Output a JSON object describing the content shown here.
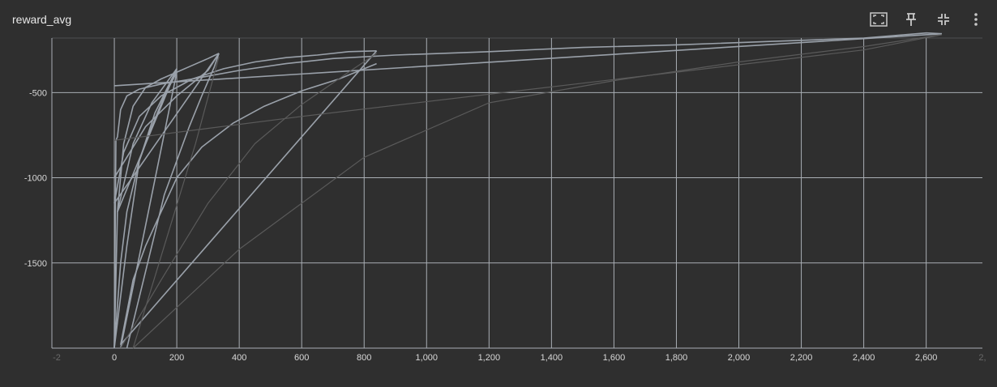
{
  "card": {
    "title": "reward_avg",
    "toolbar": [
      {
        "name": "fit-domain-icon",
        "label": "Fit domain to data"
      },
      {
        "name": "pin-icon",
        "label": "Pin card"
      },
      {
        "name": "collapse-icon",
        "label": "Collapse"
      },
      {
        "name": "more-vert-icon",
        "label": "More"
      }
    ]
  },
  "colors": {
    "background": "#2f2f2f",
    "grid": "#a9aeb4",
    "series_main": "#9aa1aa",
    "series_dim": "#5a5a5a",
    "text": "#d8d8d8"
  },
  "chart_data": {
    "type": "line",
    "title": "reward_avg",
    "xlabel": "",
    "ylabel": "",
    "xlim": [
      -200,
      2780
    ],
    "ylim": [
      -2000,
      -180
    ],
    "x_ticks": [
      0,
      200,
      400,
      600,
      800,
      1000,
      1200,
      1400,
      1600,
      1800,
      2000,
      2200,
      2400,
      2600
    ],
    "x_tick_labels": [
      "0",
      "200",
      "400",
      "600",
      "800",
      "1,000",
      "1,200",
      "1,400",
      "1,600",
      "1,800",
      "2,000",
      "2,200",
      "2,400",
      "2,600"
    ],
    "y_ticks": [
      -500,
      -1000,
      -1500
    ],
    "y_tick_labels": [
      "-500",
      "-1000",
      "-1500"
    ],
    "grid": true,
    "legend": "none",
    "series": [
      {
        "dim": false,
        "x": [
          0,
          5,
          10,
          20,
          40,
          80,
          150,
          250,
          400,
          550,
          700,
          900,
          1200,
          1500,
          1800,
          2100,
          2400,
          2600,
          2650
        ],
        "y": [
          -2000,
          -780,
          -760,
          -600,
          -520,
          -480,
          -450,
          -420,
          -370,
          -330,
          -300,
          -280,
          -260,
          -235,
          -220,
          -200,
          -180,
          -150,
          -155
        ]
      },
      {
        "dim": false,
        "x": [
          2650,
          0
        ],
        "y": [
          -155,
          -460
        ]
      },
      {
        "dim": false,
        "x": [
          0,
          10,
          30,
          60,
          100,
          150,
          200,
          250,
          300,
          335
        ],
        "y": [
          -2000,
          -1200,
          -800,
          -580,
          -470,
          -420,
          -380,
          -340,
          -300,
          -270
        ]
      },
      {
        "dim": false,
        "x": [
          335,
          0
        ],
        "y": [
          -270,
          -1150
        ]
      },
      {
        "dim": false,
        "x": [
          0,
          30,
          80,
          150,
          250,
          350,
          450,
          550,
          650,
          750,
          840
        ],
        "y": [
          -1150,
          -850,
          -640,
          -520,
          -420,
          -360,
          -320,
          -295,
          -280,
          -260,
          -255
        ]
      },
      {
        "dim": false,
        "x": [
          840,
          20
        ],
        "y": [
          -255,
          -1980
        ]
      },
      {
        "dim": false,
        "x": [
          20,
          60,
          100,
          150,
          200,
          280,
          380,
          480,
          600,
          720,
          840
        ],
        "y": [
          -1980,
          -1600,
          -1400,
          -1200,
          -1000,
          -820,
          -680,
          -580,
          -490,
          -420,
          -330
        ]
      },
      {
        "dim": false,
        "x": [
          0,
          40,
          80,
          130,
          200
        ],
        "y": [
          -2000,
          -1400,
          -900,
          -620,
          -360
        ]
      },
      {
        "dim": false,
        "x": [
          200,
          10
        ],
        "y": [
          -360,
          -1200
        ]
      },
      {
        "dim": false,
        "x": [
          10,
          60,
          120,
          200
        ],
        "y": [
          -1200,
          -800,
          -560,
          -360
        ]
      },
      {
        "dim": false,
        "x": [
          0,
          20,
          40,
          80,
          120,
          160,
          200
        ],
        "y": [
          -2000,
          -1500,
          -1200,
          -900,
          -700,
          -520,
          -380
        ]
      },
      {
        "dim": false,
        "x": [
          40,
          80,
          120,
          160,
          200,
          240,
          280,
          320,
          335
        ],
        "y": [
          -2000,
          -1700,
          -1400,
          -1100,
          -900,
          -700,
          -520,
          -350,
          -270
        ]
      },
      {
        "dim": false,
        "x": [
          200,
          20
        ],
        "y": [
          -380,
          -2000
        ]
      },
      {
        "dim": false,
        "x": [
          0,
          100,
          200,
          300,
          335
        ],
        "y": [
          -1000,
          -700,
          -520,
          -370,
          -270
        ]
      },
      {
        "dim": true,
        "x": [
          60,
          400,
          800,
          1200,
          1600,
          2000,
          2400,
          2650
        ],
        "y": [
          -2000,
          -1420,
          -880,
          -560,
          -430,
          -320,
          -230,
          -160
        ]
      },
      {
        "dim": true,
        "x": [
          0,
          600,
          1200,
          1800,
          2400,
          2650
        ],
        "y": [
          -780,
          -640,
          -510,
          -380,
          -250,
          -160
        ]
      },
      {
        "dim": true,
        "x": [
          20,
          150,
          300,
          450,
          600,
          750,
          840
        ],
        "y": [
          -2000,
          -1600,
          -1150,
          -800,
          -570,
          -380,
          -270
        ]
      },
      {
        "dim": true,
        "x": [
          60,
          160,
          260,
          335
        ],
        "y": [
          -2000,
          -1400,
          -800,
          -290
        ]
      }
    ]
  }
}
